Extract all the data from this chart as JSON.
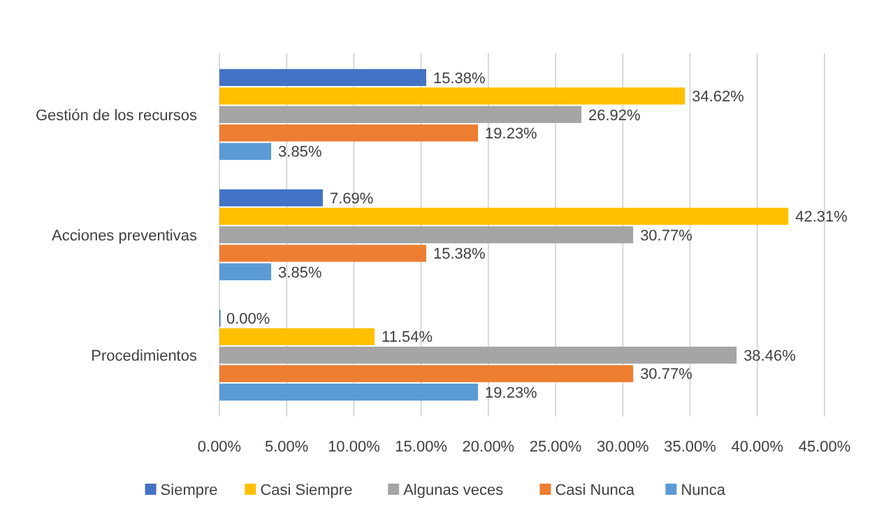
{
  "chart_data": {
    "type": "bar",
    "orientation": "horizontal",
    "categories": [
      "Gestión de los recursos",
      "Acciones preventivas",
      "Procedimientos"
    ],
    "series": [
      {
        "name": "Siempre",
        "color": "#4472c4",
        "values": [
          15.38,
          7.69,
          0.0
        ],
        "value_labels": [
          "15.38%",
          "7.69%",
          "0.00%"
        ]
      },
      {
        "name": "Casi Siempre",
        "color": "#ffc000",
        "values": [
          34.62,
          42.31,
          11.54
        ],
        "value_labels": [
          "34.62%",
          "42.31%",
          "11.54%"
        ]
      },
      {
        "name": "Algunas veces",
        "color": "#a5a5a5",
        "values": [
          26.92,
          30.77,
          38.46
        ],
        "value_labels": [
          "26.92%",
          "30.77%",
          "38.46%"
        ]
      },
      {
        "name": "Casi Nunca",
        "color": "#ed7d31",
        "values": [
          19.23,
          15.38,
          30.77
        ],
        "value_labels": [
          "19.23%",
          "15.38%",
          "30.77%"
        ]
      },
      {
        "name": "Nunca",
        "color": "#5b9bd5",
        "values": [
          3.85,
          3.85,
          19.23
        ],
        "value_labels": [
          "3.85%",
          "3.85%",
          "19.23%"
        ]
      }
    ],
    "xlim": [
      0,
      45
    ],
    "xticks": [
      {
        "value": 0,
        "label": "0.00%"
      },
      {
        "value": 5,
        "label": "5.00%"
      },
      {
        "value": 10,
        "label": "10.00%"
      },
      {
        "value": 15,
        "label": "15.00%"
      },
      {
        "value": 20,
        "label": "20.00%"
      },
      {
        "value": 25,
        "label": "25.00%"
      },
      {
        "value": 30,
        "label": "30.00%"
      },
      {
        "value": 35,
        "label": "35.00%"
      },
      {
        "value": 40,
        "label": "40.00%"
      },
      {
        "value": 45,
        "label": "45.00%"
      }
    ],
    "grid": "x",
    "legend": "bottom"
  }
}
